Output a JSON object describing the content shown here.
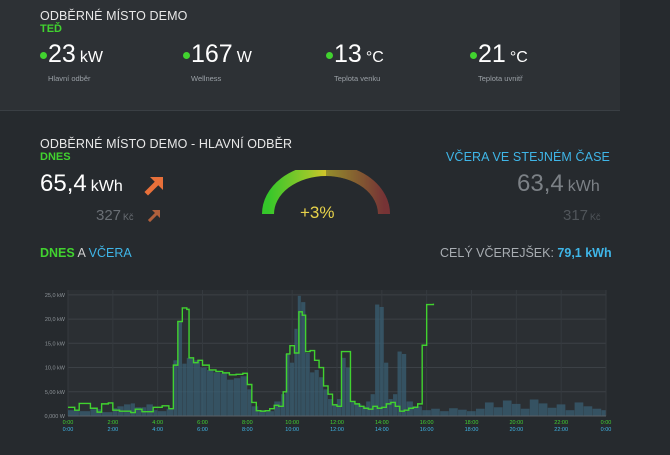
{
  "header": {
    "title": "ODBĚRNÉ MÍSTO DEMO",
    "now_label": "TEĎ",
    "metrics": [
      {
        "value": "23",
        "unit": "kW",
        "label": "Hlavní odběr"
      },
      {
        "value": "167",
        "unit": "W",
        "label": "Wellness"
      },
      {
        "value": "13",
        "unit": "°C",
        "label": "Teplota venku"
      },
      {
        "value": "21",
        "unit": "°C",
        "label": "Teplota uvnitř"
      }
    ]
  },
  "main": {
    "title": "ODBĚRNÉ MÍSTO DEMO - HLAVNÍ ODBĚR",
    "today_label": "DNES",
    "today_value": "65,4",
    "today_unit": "kWh",
    "today_cost": "327",
    "today_cost_unit": "Kč",
    "yesterday_label": "VČERA VE STEJNÉM ČASE",
    "yesterday_value": "63,4",
    "yesterday_unit": "kWh",
    "yesterday_cost": "317",
    "yesterday_cost_unit": "Kč",
    "gauge_text": "+3%",
    "chart_today": "DNES",
    "chart_and": "A",
    "chart_yesterday": "VČERA",
    "total_label": "CELÝ VČEREJŠEK:",
    "total_value": "79,1 kWh"
  },
  "colors": {
    "green": "#41d22f",
    "blue": "#3fb6e8",
    "orange": "#e8703a",
    "gauge_text": "#e8d34a"
  },
  "chart_data": {
    "type": "line",
    "y_unit": "kW",
    "ylim": [
      0,
      26
    ],
    "y_ticks": [
      "0,000 W",
      "5,00 kW",
      "10,0 kW",
      "15,0 kW",
      "20,0 kW",
      "25,0 kW"
    ],
    "y_tick_values": [
      0,
      5,
      10,
      15,
      20,
      25
    ],
    "x_ticks": [
      "0:00",
      "2:00",
      "4:00",
      "6:00",
      "8:00",
      "10:00",
      "12:00",
      "14:00",
      "16:00",
      "18:00",
      "20:00",
      "22:00",
      "0:00"
    ],
    "x_tick_hours": [
      0,
      2,
      4,
      6,
      8,
      10,
      12,
      14,
      16,
      18,
      20,
      22,
      24
    ],
    "grid": true,
    "series": [
      {
        "name": "DNES",
        "color": "#41d22f",
        "points": [
          [
            0,
            1.8
          ],
          [
            0.3,
            1.2
          ],
          [
            0.5,
            2.6
          ],
          [
            0.8,
            2.6
          ],
          [
            1,
            1.6
          ],
          [
            1.3,
            0.8
          ],
          [
            1.5,
            2.5
          ],
          [
            1.8,
            2.7
          ],
          [
            2.0,
            1.2
          ],
          [
            2.3,
            1.0
          ],
          [
            2.5,
            1.0
          ],
          [
            2.8,
            0.7
          ],
          [
            3.0,
            1.4
          ],
          [
            3.3,
            0.9
          ],
          [
            3.6,
            0.9
          ],
          [
            3.8,
            1.8
          ],
          [
            4.0,
            1.8
          ],
          [
            4.2,
            2.1
          ],
          [
            4.5,
            1.5
          ],
          [
            4.7,
            10.5
          ],
          [
            4.9,
            19.5
          ],
          [
            5.1,
            22.3
          ],
          [
            5.3,
            22.0
          ],
          [
            5.4,
            12.0
          ],
          [
            5.6,
            11.0
          ],
          [
            5.8,
            11.5
          ],
          [
            6.0,
            10.5
          ],
          [
            6.3,
            9.5
          ],
          [
            6.6,
            9.2
          ],
          [
            6.9,
            8.9
          ],
          [
            7.2,
            8.5
          ],
          [
            7.5,
            8.6
          ],
          [
            7.8,
            8.8
          ],
          [
            8.0,
            6.5
          ],
          [
            8.2,
            2.8
          ],
          [
            8.4,
            1.1
          ],
          [
            8.6,
            1.0
          ],
          [
            8.8,
            1.1
          ],
          [
            9.0,
            1.5
          ],
          [
            9.2,
            2.2
          ],
          [
            9.4,
            2.0
          ],
          [
            9.6,
            5.0
          ],
          [
            9.75,
            12.8
          ],
          [
            9.9,
            14.5
          ],
          [
            10.1,
            13.0
          ],
          [
            10.3,
            21.5
          ],
          [
            10.45,
            20.8
          ],
          [
            10.6,
            13.3
          ],
          [
            10.8,
            13.5
          ],
          [
            11.0,
            11.5
          ],
          [
            11.2,
            10.0
          ],
          [
            11.4,
            6.2
          ],
          [
            11.6,
            4.5
          ],
          [
            11.8,
            2.3
          ],
          [
            12.0,
            2.0
          ],
          [
            12.2,
            13.3
          ],
          [
            12.4,
            13.3
          ],
          [
            12.6,
            3.0
          ],
          [
            12.8,
            2.5
          ],
          [
            13.0,
            2.0
          ],
          [
            13.2,
            1.6
          ],
          [
            13.4,
            1.4
          ],
          [
            13.6,
            2.0
          ],
          [
            13.8,
            1.6
          ],
          [
            14.0,
            1.8
          ],
          [
            14.2,
            2.5
          ],
          [
            14.4,
            2.8
          ],
          [
            14.6,
            2.0
          ],
          [
            14.8,
            1.0
          ],
          [
            15.0,
            1.2
          ],
          [
            15.2,
            1.6
          ],
          [
            15.4,
            1.8
          ],
          [
            15.6,
            2.5
          ],
          [
            15.8,
            14.6
          ],
          [
            15.9,
            14.6
          ],
          [
            16.0,
            23.0
          ],
          [
            16.3,
            23.2
          ]
        ]
      },
      {
        "name": "VČERA",
        "color": "#3a5f73",
        "points": [
          [
            0,
            1.2
          ],
          [
            0.5,
            1.0
          ],
          [
            1,
            1.4
          ],
          [
            1.5,
            0.8
          ],
          [
            2,
            1.6
          ],
          [
            2.2,
            2.0
          ],
          [
            2.5,
            2.4
          ],
          [
            2.8,
            2.6
          ],
          [
            3.0,
            1.8
          ],
          [
            3.3,
            1.8
          ],
          [
            3.5,
            2.4
          ],
          [
            3.8,
            1.2
          ],
          [
            4.0,
            1.0
          ],
          [
            4.4,
            1.5
          ],
          [
            4.7,
            11.5
          ],
          [
            4.9,
            19.5
          ],
          [
            5.1,
            10.8
          ],
          [
            5.3,
            12.0
          ],
          [
            5.6,
            11.5
          ],
          [
            5.9,
            10.0
          ],
          [
            6.2,
            9.5
          ],
          [
            6.5,
            9.0
          ],
          [
            6.8,
            8.8
          ],
          [
            7.1,
            7.5
          ],
          [
            7.4,
            7.8
          ],
          [
            7.7,
            8.2
          ],
          [
            8.0,
            5.5
          ],
          [
            8.2,
            2.0
          ],
          [
            8.5,
            1.2
          ],
          [
            8.8,
            1.0
          ],
          [
            9.2,
            3.0
          ],
          [
            9.5,
            4.5
          ],
          [
            9.7,
            12.8
          ],
          [
            9.9,
            11.0
          ],
          [
            10.1,
            18.0
          ],
          [
            10.25,
            24.8
          ],
          [
            10.4,
            23.5
          ],
          [
            10.6,
            13.0
          ],
          [
            10.8,
            9.0
          ],
          [
            11.0,
            9.5
          ],
          [
            11.2,
            8.0
          ],
          [
            11.4,
            5.5
          ],
          [
            11.6,
            3.5
          ],
          [
            11.8,
            2.5
          ],
          [
            12.0,
            3.5
          ],
          [
            12.2,
            12.0
          ],
          [
            12.4,
            10.0
          ],
          [
            12.6,
            3.0
          ],
          [
            12.8,
            2.5
          ],
          [
            13.1,
            2.0
          ],
          [
            13.3,
            3.0
          ],
          [
            13.5,
            4.5
          ],
          [
            13.7,
            23.0
          ],
          [
            13.9,
            22.5
          ],
          [
            14.1,
            11.0
          ],
          [
            14.3,
            3.5
          ],
          [
            14.5,
            4.5
          ],
          [
            14.7,
            13.3
          ],
          [
            14.9,
            12.8
          ],
          [
            15.1,
            3.0
          ],
          [
            15.4,
            2.0
          ],
          [
            15.8,
            1.2
          ],
          [
            16.2,
            1.5
          ],
          [
            16.6,
            1.0
          ],
          [
            17.0,
            1.6
          ],
          [
            17.4,
            1.3
          ],
          [
            17.8,
            1.0
          ],
          [
            18.2,
            1.5
          ],
          [
            18.6,
            2.8
          ],
          [
            19.0,
            1.8
          ],
          [
            19.4,
            3.2
          ],
          [
            19.8,
            2.5
          ],
          [
            20.2,
            1.5
          ],
          [
            20.6,
            3.4
          ],
          [
            21.0,
            2.6
          ],
          [
            21.4,
            1.7
          ],
          [
            21.8,
            2.4
          ],
          [
            22.2,
            1.2
          ],
          [
            22.6,
            2.8
          ],
          [
            23.0,
            2.0
          ],
          [
            23.4,
            1.5
          ],
          [
            23.8,
            1.2
          ],
          [
            24,
            1.0
          ]
        ]
      }
    ]
  }
}
